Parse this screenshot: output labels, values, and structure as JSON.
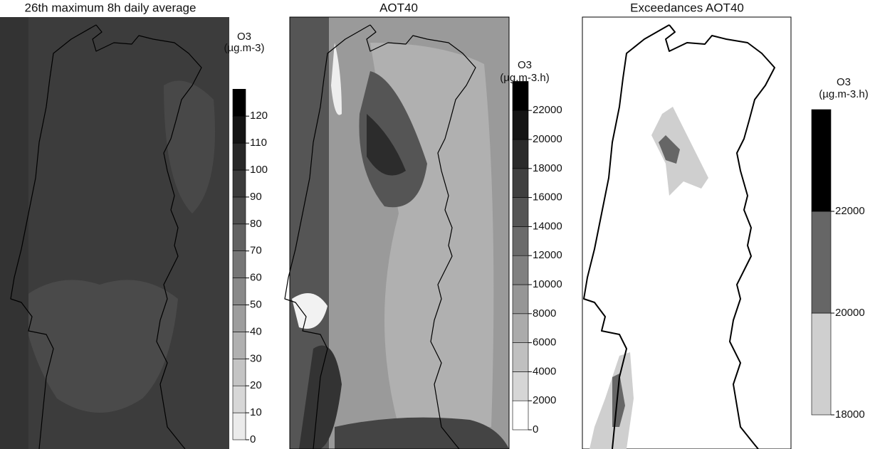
{
  "panels": [
    {
      "title": "26th maximum 8h daily average",
      "unit": [
        "O3",
        "(µg.m-3)"
      ],
      "ticks": [
        0,
        10,
        20,
        30,
        40,
        50,
        60,
        70,
        80,
        90,
        100,
        110,
        120
      ]
    },
    {
      "title": "AOT40",
      "unit": [
        "O3",
        "(µg.m-3.h)"
      ],
      "ticks": [
        0,
        2000,
        4000,
        6000,
        8000,
        10000,
        12000,
        14000,
        16000,
        18000,
        20000,
        22000
      ]
    },
    {
      "title": "Exceedances AOT40",
      "unit": [
        "O3",
        "(µg.m-3.h)"
      ],
      "ticks": [
        18000,
        20000,
        22000
      ]
    }
  ]
}
